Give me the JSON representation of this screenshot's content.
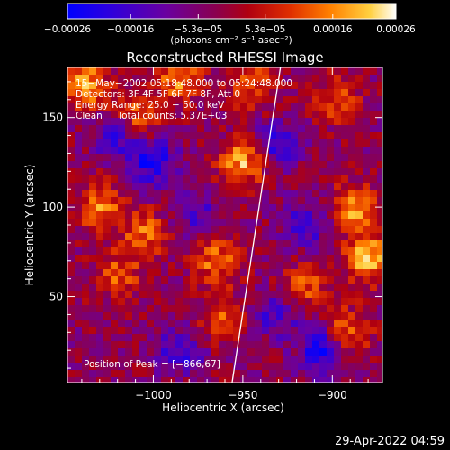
{
  "chart_data": {
    "type": "heatmap",
    "title": "Reconstructed RHESSI Image",
    "xlabel": "Heliocentric X (arcsec)",
    "ylabel": "Heliocentric Y (arcsec)",
    "xlim": [
      -1048,
      -872
    ],
    "ylim": [
      2,
      178
    ],
    "x_ticks": [
      -1000,
      -950,
      -900
    ],
    "x_tick_labels": [
      "−1000",
      "−950",
      "−900"
    ],
    "y_ticks": [
      50,
      100,
      150
    ],
    "y_tick_labels": [
      "50",
      "100",
      "150"
    ],
    "colorbar": {
      "min": -0.00026,
      "max": 0.00026,
      "tick_values": [
        -0.00026,
        -0.00016,
        -5.3e-05,
        5.3e-05,
        0.00016,
        0.00026
      ],
      "tick_labels": [
        "−0.00026",
        "−0.00016",
        "−5.3e−05",
        "5.3e−05",
        "0.00016",
        "0.00026"
      ],
      "units": "(photons cm⁻² s⁻¹ asec⁻²)",
      "colormap": [
        "#0000ff",
        "#5500bb",
        "#6a3a90",
        "#7a2a60",
        "#aa1010",
        "#dd3000",
        "#ff7a00",
        "#ffc830",
        "#ffffff"
      ]
    },
    "annotations": {
      "time_range": "15−May−2002 05:18:48.000 to 05:24:48.000",
      "detectors": "Detectors: 3F 4F 5F 6F 7F 8F, Att 0",
      "energy_range": "Energy Range: 25.0 − 50.0 keV",
      "clean_counts": "Clean     Total counts: 5.37E+03",
      "peak_position": "Position of Peak = [−866,67]"
    },
    "limb_line": {
      "x": [
        -956,
        -929
      ],
      "y": [
        2,
        178
      ]
    },
    "hot_spots": [
      {
        "x": -1038,
        "y": 168,
        "value": 0.00022
      },
      {
        "x": -1030,
        "y": 100,
        "value": 0.00018
      },
      {
        "x": -1020,
        "y": 62,
        "value": 0.00015
      },
      {
        "x": -1010,
        "y": 150,
        "value": 0.00017
      },
      {
        "x": -1005,
        "y": 85,
        "value": 0.00016
      },
      {
        "x": -985,
        "y": 172,
        "value": 0.00019
      },
      {
        "x": -965,
        "y": 70,
        "value": 0.00017
      },
      {
        "x": -962,
        "y": 38,
        "value": 0.00014
      },
      {
        "x": -950,
        "y": 125,
        "value": 0.00022
      },
      {
        "x": -945,
        "y": 168,
        "value": 0.00015
      },
      {
        "x": -915,
        "y": 55,
        "value": 0.00014
      },
      {
        "x": -898,
        "y": 160,
        "value": 0.00013
      },
      {
        "x": -888,
        "y": 100,
        "value": 0.00021
      },
      {
        "x": -880,
        "y": 72,
        "value": 0.00025
      },
      {
        "x": -892,
        "y": 30,
        "value": 0.00018
      }
    ],
    "cold_spots": [
      {
        "x": -1000,
        "y": 125,
        "value": -0.0002
      },
      {
        "x": -1020,
        "y": 140,
        "value": -0.00016
      },
      {
        "x": -930,
        "y": 135,
        "value": -0.00017
      },
      {
        "x": -915,
        "y": 90,
        "value": -0.00015
      },
      {
        "x": -905,
        "y": 20,
        "value": -0.00022
      },
      {
        "x": -985,
        "y": 20,
        "value": -0.00015
      },
      {
        "x": -930,
        "y": 40,
        "value": -0.00014
      },
      {
        "x": -975,
        "y": 95,
        "value": -0.00012
      }
    ]
  },
  "footer": {
    "timestamp": "29-Apr-2022 04:59"
  }
}
